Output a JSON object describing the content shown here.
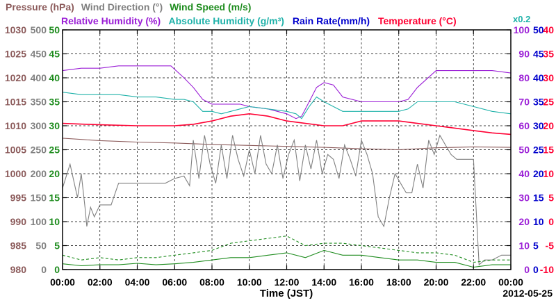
{
  "chart_data": {
    "type": "line",
    "date_label": "2012-05-25",
    "xlabel": "Time (JST)",
    "x_ticks": [
      "00:00",
      "02:00",
      "04:00",
      "06:00",
      "08:00",
      "10:00",
      "12:00",
      "14:00",
      "16:00",
      "18:00",
      "20:00",
      "22:00",
      "00:00"
    ],
    "x_range_hours": [
      0,
      24
    ],
    "grid": true,
    "legend": {
      "row1": [
        {
          "label": "Pressure (hPa)",
          "color": "#8b5a5a"
        },
        {
          "label": "Wind Direction (°)",
          "color": "#808080"
        },
        {
          "label": "Wind Speed (m/s)",
          "color": "#1e8c1e"
        }
      ],
      "row2": [
        {
          "label": "Relative Humidity (%)",
          "color": "#9b1fd6"
        },
        {
          "label": "Absolute Humidity (g/m³)",
          "color": "#20b2aa"
        },
        {
          "label": "Rain Rate(mm/h)",
          "color": "#0000cc"
        },
        {
          "label": "Temperature (°C)",
          "color": "#ff0033"
        },
        {
          "label": "x0.2",
          "color": "#20b2aa"
        }
      ]
    },
    "axes": {
      "pressure": {
        "unit": "hPa",
        "range": [
          980,
          1030
        ],
        "ticks": [
          "1030",
          "1025",
          "1020",
          "1015",
          "1010",
          "1005",
          "1000",
          "995",
          "990",
          "985",
          "980"
        ],
        "color": "#8b5a5a"
      },
      "wind_direction": {
        "unit": "°",
        "range": [
          0,
          500
        ],
        "ticks": [
          "500",
          "450",
          "400",
          "350",
          "300",
          "250",
          "200",
          "150",
          "100",
          "50",
          "0"
        ],
        "color": "#808080"
      },
      "wind_speed": {
        "unit": "m/s",
        "range": [
          0,
          50
        ],
        "ticks": [
          "50",
          "45",
          "40",
          "35",
          "30",
          "25",
          "20",
          "15",
          "10",
          "5",
          "0"
        ],
        "color": "#1e8c1e"
      },
      "relative_humidity": {
        "unit": "%",
        "range": [
          0,
          100
        ],
        "ticks": [
          "100",
          "90",
          "80",
          "70",
          "60",
          "50",
          "40",
          "30",
          "20",
          "10",
          "0"
        ],
        "color": "#9b1fd6"
      },
      "rain_rate": {
        "unit": "mm/h",
        "range": [
          0,
          50
        ],
        "ticks": [
          "50",
          "45",
          "40",
          "35",
          "30",
          "25",
          "20",
          "15",
          "10",
          "5",
          "0"
        ],
        "color": "#0000cc"
      },
      "temperature": {
        "unit": "°C",
        "range": [
          -10,
          40
        ],
        "ticks": [
          "40",
          "35",
          "30",
          "25",
          "20",
          "15",
          "10",
          "5",
          "0",
          "-5",
          "-10"
        ],
        "color": "#ff0033"
      }
    },
    "series": [
      {
        "name": "Pressure (hPa)",
        "axis": "pressure",
        "color": "#8b5a5a",
        "style": "solid",
        "x": [
          0,
          2,
          4,
          6,
          8,
          10,
          12,
          14,
          16,
          18,
          20,
          22,
          24
        ],
        "values": [
          1007.4,
          1006.9,
          1006.6,
          1006.4,
          1006.1,
          1005.9,
          1005.7,
          1005.5,
          1005.2,
          1005.0,
          1005.4,
          1005.6,
          1005.5
        ]
      },
      {
        "name": "Wind Direction (°)",
        "axis": "wind_direction",
        "color": "#808080",
        "style": "solid",
        "x": [
          0,
          0.4,
          0.8,
          1.0,
          1.2,
          1.3,
          1.5,
          1.7,
          2.0,
          2.6,
          3.0,
          3.5,
          4.0,
          4.5,
          5.0,
          5.5,
          6.0,
          6.5,
          6.8,
          7.0,
          7.3,
          7.6,
          7.9,
          8.2,
          8.5,
          8.8,
          9.1,
          9.4,
          9.7,
          10.0,
          10.3,
          10.6,
          10.9,
          11.2,
          11.5,
          11.8,
          12.1,
          12.4,
          12.7,
          13.0,
          13.3,
          13.6,
          13.9,
          14.2,
          14.5,
          14.8,
          15.1,
          15.4,
          15.7,
          16.0,
          16.3,
          16.6,
          16.9,
          17.2,
          17.5,
          17.8,
          18.1,
          18.4,
          18.7,
          19.0,
          19.3,
          19.6,
          19.9,
          20.2,
          20.5,
          20.8,
          21.1,
          21.4,
          21.7,
          22.0,
          22.3,
          22.6,
          23.0,
          23.5,
          24.0
        ],
        "values": [
          170,
          220,
          150,
          200,
          130,
          90,
          130,
          110,
          135,
          135,
          180,
          180,
          180,
          180,
          180,
          180,
          190,
          195,
          175,
          270,
          190,
          280,
          220,
          180,
          260,
          190,
          280,
          230,
          195,
          250,
          200,
          280,
          220,
          200,
          260,
          190,
          240,
          270,
          185,
          260,
          210,
          270,
          200,
          240,
          230,
          190,
          260,
          230,
          195,
          270,
          240,
          200,
          110,
          90,
          150,
          200,
          180,
          160,
          160,
          220,
          170,
          270,
          240,
          280,
          260,
          240,
          230,
          230,
          230,
          230,
          10,
          20,
          20,
          30,
          30
        ]
      },
      {
        "name": "Wind Speed (m/s)",
        "axis": "wind_speed",
        "color": "#1e8c1e",
        "style": "solid",
        "x": [
          0,
          1,
          2,
          3,
          4,
          5,
          6,
          7,
          8,
          9,
          10,
          11,
          12,
          13,
          14,
          15,
          16,
          17,
          18,
          19,
          20,
          21,
          22,
          23,
          24
        ],
        "values": [
          1.2,
          0.8,
          1.0,
          1.0,
          1.3,
          1.0,
          1.2,
          1.5,
          2.0,
          2.5,
          2.5,
          3.0,
          3.5,
          2.5,
          4.0,
          3.0,
          3.0,
          2.5,
          2.0,
          2.0,
          1.5,
          1.5,
          0.5,
          1.0,
          1.0
        ]
      },
      {
        "name": "Wind Speed gust (m/s)",
        "axis": "wind_speed",
        "color": "#1e8c1e",
        "style": "dashed",
        "x": [
          0,
          1,
          2,
          3,
          4,
          5,
          6,
          7,
          8,
          9,
          10,
          11,
          12,
          13,
          14,
          15,
          16,
          17,
          18,
          19,
          20,
          21,
          22,
          23,
          24
        ],
        "values": [
          3.0,
          2.0,
          2.5,
          2.0,
          2.5,
          2.5,
          3.0,
          3.5,
          4.0,
          5.5,
          6.0,
          6.5,
          7.0,
          5.0,
          5.5,
          5.5,
          5.0,
          4.5,
          4.0,
          3.5,
          3.5,
          3.0,
          1.5,
          2.0,
          2.0
        ]
      },
      {
        "name": "Relative Humidity (%)",
        "axis": "relative_humidity",
        "color": "#9b1fd6",
        "style": "solid",
        "x": [
          0,
          1,
          2,
          3,
          4,
          5,
          5.8,
          6.5,
          7.0,
          7.5,
          8.0,
          8.5,
          9.0,
          9.5,
          10.0,
          11.0,
          12.0,
          12.5,
          12.8,
          13.2,
          13.6,
          14.0,
          14.5,
          15.0,
          16.0,
          17.0,
          18.0,
          18.5,
          19.0,
          20.0,
          21.0,
          22.0,
          23.0,
          24.0
        ],
        "values": [
          83,
          84,
          84,
          85,
          85,
          85,
          85,
          80,
          76,
          71,
          69,
          69,
          69,
          69,
          68,
          67,
          65,
          63,
          64,
          70,
          76,
          78,
          77,
          72,
          70,
          70,
          70,
          71,
          76,
          83,
          83,
          83,
          83,
          82
        ]
      },
      {
        "name": "Absolute Humidity (g/m³)",
        "axis": "relative_humidity",
        "color": "#20b2aa",
        "style": "solid",
        "x": [
          0,
          1,
          2,
          3,
          4,
          5,
          6,
          6.5,
          7.0,
          7.5,
          8.0,
          8.5,
          9.0,
          9.5,
          10.0,
          11.0,
          12.0,
          12.5,
          12.8,
          13.2,
          13.6,
          14.0,
          14.5,
          15.0,
          16.0,
          17.0,
          18.0,
          18.5,
          19.0,
          20.0,
          21.0,
          22.0,
          23.0,
          24.0
        ],
        "values": [
          74,
          73,
          73,
          73,
          72,
          72,
          71,
          71,
          70,
          66,
          66,
          65,
          66,
          67,
          68,
          67,
          66,
          65,
          63,
          68,
          72,
          70,
          68,
          66,
          66,
          66,
          66,
          67,
          70,
          70,
          70,
          68,
          66,
          65
        ]
      },
      {
        "name": "Temperature (°C)",
        "axis": "temperature",
        "color": "#ff0033",
        "style": "solid",
        "x": [
          0,
          2,
          4,
          6,
          7,
          8,
          9,
          10,
          11,
          12,
          13,
          14,
          15,
          16,
          17,
          18,
          19,
          20,
          21,
          22,
          23,
          24
        ],
        "values": [
          20.5,
          20.2,
          20.0,
          20.0,
          20.3,
          21.0,
          22.0,
          22.5,
          22.0,
          21.0,
          20.5,
          20.0,
          20.0,
          21.0,
          21.0,
          21.0,
          20.5,
          20.0,
          19.5,
          19.0,
          18.5,
          18.2
        ]
      }
    ]
  }
}
